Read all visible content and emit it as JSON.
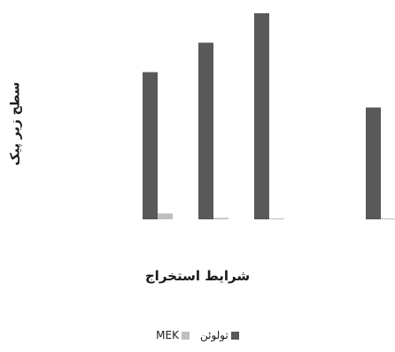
{
  "chart_data": {
    "type": "bar",
    "ylabel": "سطح زیر پیک",
    "xlabel": "شرایط استخراج",
    "categories": [
      "",
      "",
      "",
      ""
    ],
    "series": [
      {
        "name": "تولوئن",
        "color": "#595959",
        "values": [
          100,
          120,
          140,
          76
        ]
      },
      {
        "name": "MEK",
        "color": "#bfbfbf",
        "values": [
          4,
          1,
          0.5,
          0.5
        ]
      }
    ],
    "ylim": [
      0,
      140
    ],
    "grid": false,
    "legend_position": "bottom"
  }
}
